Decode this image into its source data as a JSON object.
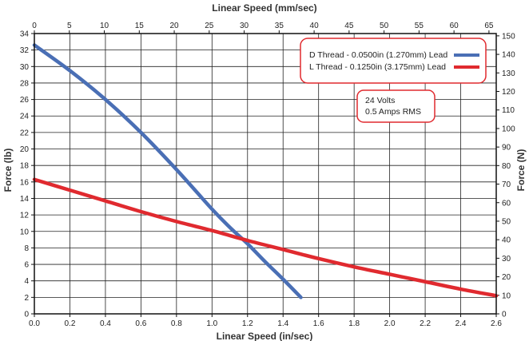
{
  "chart_data": {
    "type": "line",
    "title": "",
    "x_bottom": {
      "label": "Linear Speed (in/sec)",
      "range": [
        0,
        2.6
      ],
      "ticks": [
        "0.0",
        "0.2",
        "0.4",
        "0.6",
        "0.8",
        "1.0",
        "1.2",
        "1.4",
        "1.6",
        "1.8",
        "2.0",
        "2.2",
        "2.4",
        "2.6"
      ]
    },
    "x_top": {
      "label": "Linear Speed (mm/sec)",
      "range": [
        0,
        66.04
      ],
      "ticks": [
        "0",
        "5",
        "10",
        "15",
        "20",
        "25",
        "30",
        "35",
        "40",
        "45",
        "50",
        "55",
        "60",
        "65"
      ]
    },
    "y_left": {
      "label": "Force (lb)",
      "range": [
        0,
        34
      ],
      "ticks": [
        "0",
        "2",
        "4",
        "6",
        "8",
        "10",
        "12",
        "14",
        "16",
        "18",
        "20",
        "22",
        "24",
        "26",
        "28",
        "30",
        "32",
        "34"
      ]
    },
    "y_right": {
      "label": "Force (N)",
      "range": [
        0,
        151.24
      ],
      "ticks": [
        "0",
        "10",
        "20",
        "30",
        "40",
        "50",
        "60",
        "70",
        "80",
        "90",
        "100",
        "110",
        "120",
        "130",
        "140",
        "150"
      ]
    },
    "grid": true,
    "legend_position": "top-right",
    "series": [
      {
        "name": "D Thread - 0.0500in (1.270mm) Lead",
        "color": "#4a6fb5",
        "x": [
          0,
          0.2,
          0.4,
          0.6,
          0.8,
          1.0,
          1.1,
          1.2,
          1.3,
          1.4,
          1.5
        ],
        "y": [
          32.6,
          29.5,
          26.0,
          22.0,
          17.5,
          12.7,
          10.5,
          8.5,
          6.3,
          4.2,
          2.0
        ]
      },
      {
        "name": "L Thread - 0.1250in (3.175mm) Lead",
        "color": "#e02a2f",
        "x": [
          0,
          0.2,
          0.4,
          0.6,
          0.8,
          1.0,
          1.2,
          1.4,
          1.6,
          1.8,
          2.0,
          2.2,
          2.4,
          2.6
        ],
        "y": [
          16.3,
          15.0,
          13.7,
          12.4,
          11.2,
          10.1,
          8.9,
          7.8,
          6.7,
          5.7,
          4.8,
          3.9,
          3.0,
          2.2
        ]
      }
    ],
    "annotation": {
      "lines": [
        "24 Volts",
        "0.5 Amps RMS"
      ]
    }
  },
  "colors": {
    "border": "#e02a2f",
    "grid": "#222222"
  }
}
